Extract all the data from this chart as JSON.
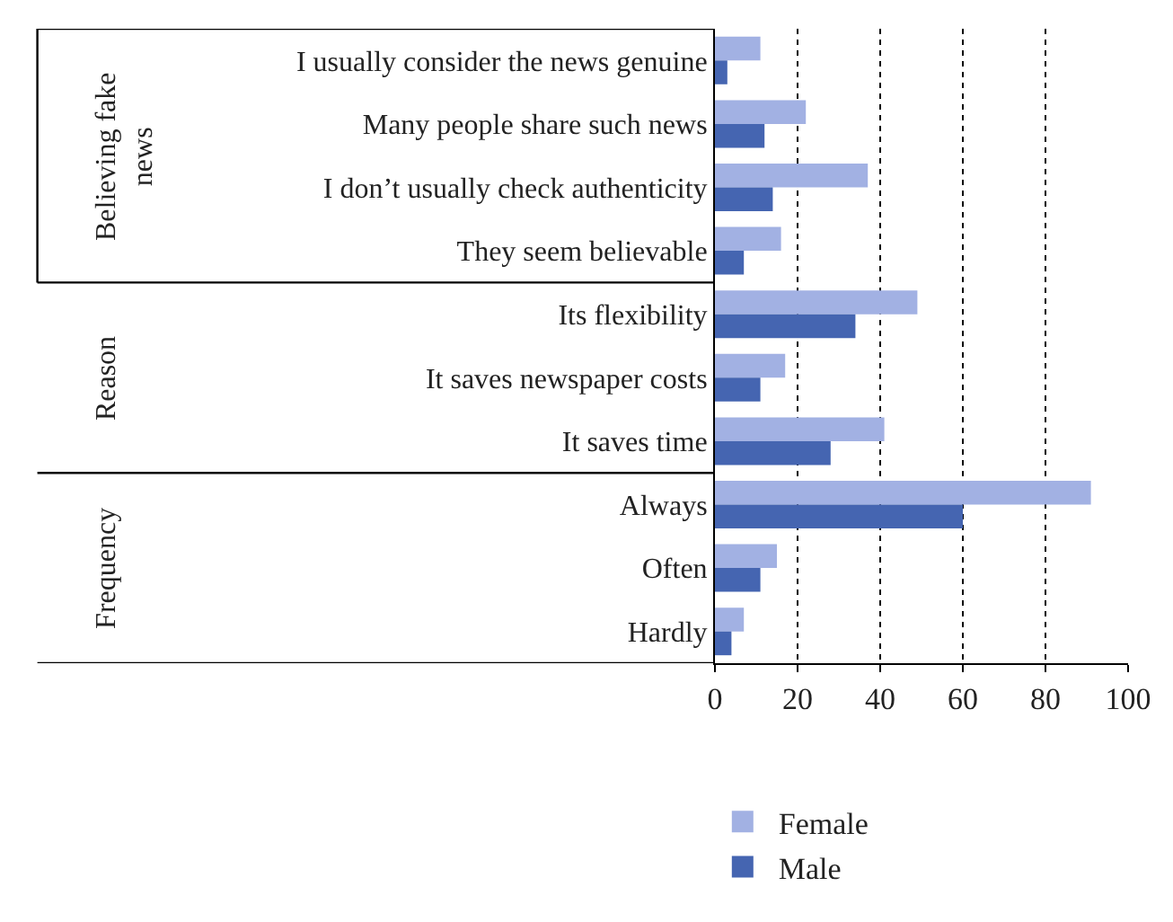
{
  "chart_data": {
    "type": "bar",
    "orientation": "horizontal",
    "categories": [
      "I usually consider the news genuine",
      "Many people share such news",
      "I don’t usually check authenticity",
      "They seem believable",
      "Its flexibility",
      "It saves newspaper costs",
      "It saves time",
      "Always",
      "Often",
      "Hardly"
    ],
    "series": [
      {
        "name": "Female",
        "color": "#a2b1e3",
        "values": [
          11,
          22,
          37,
          16,
          49,
          17,
          41,
          91,
          15,
          7
        ]
      },
      {
        "name": "Male",
        "color": "#4565b1",
        "values": [
          3,
          12,
          14,
          7,
          34,
          11,
          28,
          60,
          11,
          4
        ]
      }
    ],
    "xlim": [
      0,
      100
    ],
    "xticks": [
      0,
      20,
      40,
      60,
      80,
      100
    ],
    "grid": "x",
    "legend": "bottom",
    "annotations": [
      "Believing fake news",
      "Reason",
      "Frequency"
    ]
  }
}
